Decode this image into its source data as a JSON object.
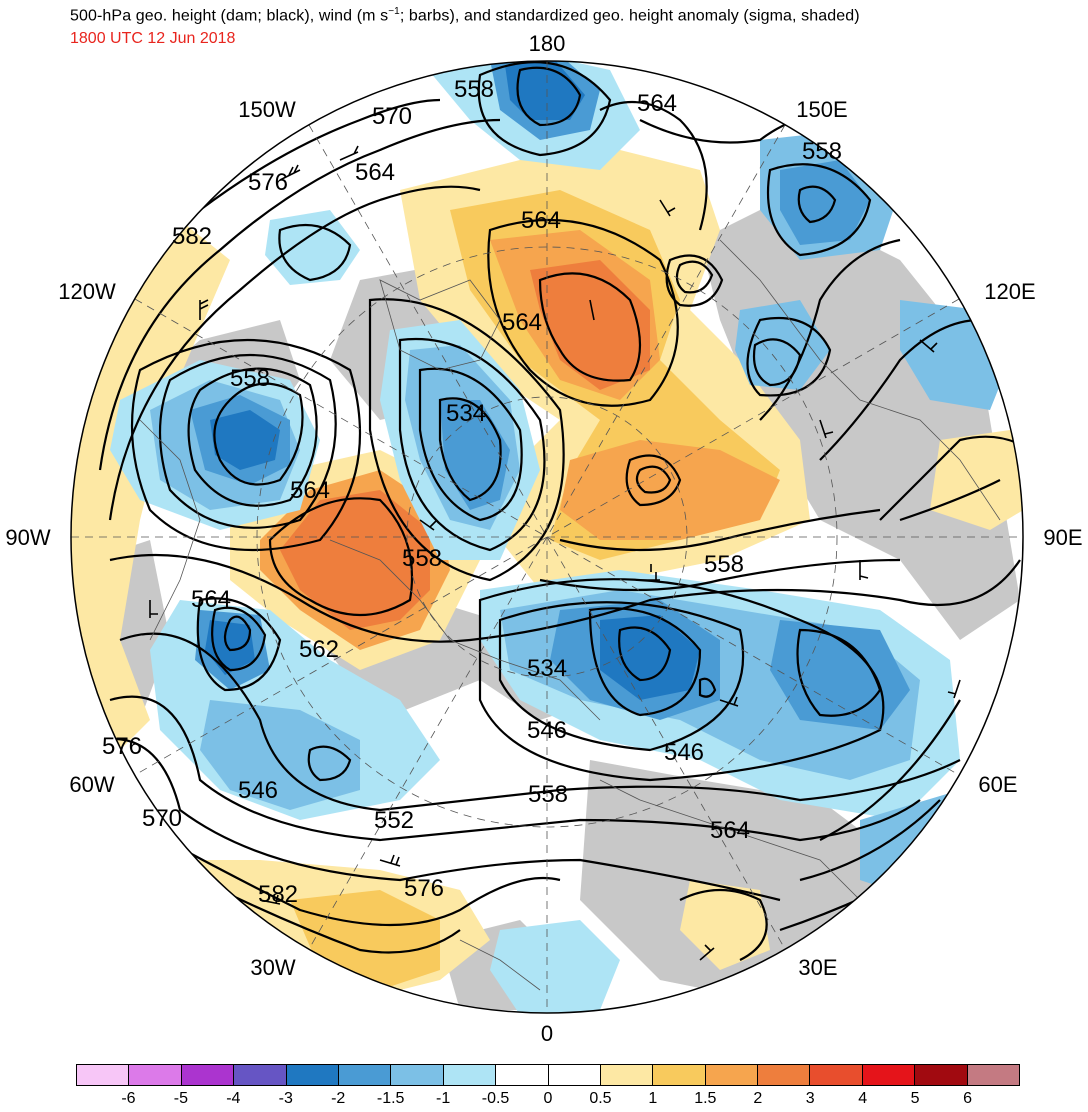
{
  "title": {
    "main": "500-hPa geo. height (dam; black), wind (m s",
    "superscript": "−1",
    "main_end": "; barbs), and standardized geo. height anomaly (sigma, shaded)",
    "valid_time": "1800 UTC 12 Jun 2018"
  },
  "map": {
    "projection": "north polar stereographic",
    "longitude_labels": {
      "top": "180",
      "upper_left": "150W",
      "upper_right": "150E",
      "left_upper": "120W",
      "right_upper": "120E",
      "left": "90W",
      "right": "90E",
      "left_lower": "60W",
      "right_lower": "60E",
      "lower_left": "30W",
      "lower_right": "30E",
      "bottom": "0"
    },
    "contour_labels": [
      "558",
      "564",
      "570",
      "576",
      "564",
      "582",
      "558",
      "564",
      "564",
      "534",
      "564",
      "558",
      "564",
      "562",
      "558",
      "534",
      "576",
      "546",
      "546",
      "570",
      "546",
      "552",
      "558",
      "564",
      "582",
      "576"
    ]
  },
  "colorbar": {
    "colors": [
      "#f7c6f7",
      "#dc7ae9",
      "#ab34cf",
      "#6655c4",
      "#1f78c1",
      "#4a9bd4",
      "#7cc0e6",
      "#aee4f5",
      "#ffffff",
      "#ffffff",
      "#fde8a4",
      "#f8ca5d",
      "#f6a54e",
      "#ee7e3d",
      "#e84e2d",
      "#e5141a",
      "#a10a10",
      "#c47a82"
    ],
    "tick_labels": [
      "-6",
      "-5",
      "-4",
      "-3",
      "-2",
      "-1.5",
      "-1",
      "-0.5",
      "0",
      "0.5",
      "1",
      "1.5",
      "2",
      "3",
      "4",
      "5",
      "6"
    ]
  }
}
